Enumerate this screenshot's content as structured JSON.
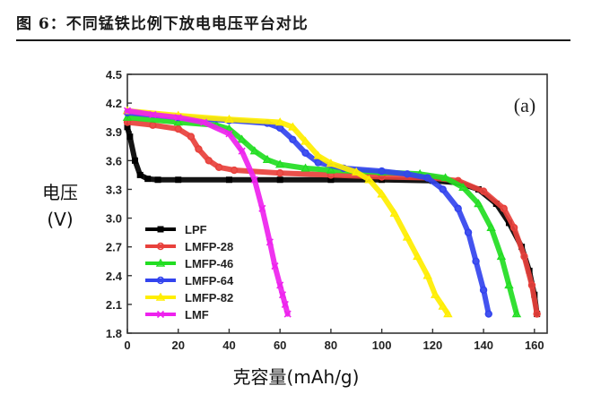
{
  "figure_title": "图 6：不同锰铁比例下放电电压平台对比",
  "chart_data": {
    "type": "line",
    "panel_label": "(a)",
    "ylabel_line1": "电压",
    "ylabel_line2": "(V)",
    "xlabel": "克容量(mAh/g)",
    "xlim": [
      0,
      165
    ],
    "ylim": [
      1.8,
      4.5
    ],
    "xticks": [
      "0",
      "20",
      "40",
      "60",
      "80",
      "100",
      "120",
      "140",
      "160"
    ],
    "yticks": [
      "1.8",
      "2.1",
      "2.4",
      "2.7",
      "3.0",
      "3.3",
      "3.6",
      "3.9",
      "4.2",
      "4.5"
    ],
    "grid": false,
    "legend_position": "bottom-left",
    "series": [
      {
        "name": "LPF",
        "color": "#000000",
        "marker": "square",
        "x": [
          0,
          1,
          3,
          5,
          8,
          12,
          20,
          40,
          60,
          80,
          100,
          120,
          130,
          138,
          145,
          150,
          155,
          158,
          160,
          161
        ],
        "y": [
          3.95,
          3.85,
          3.6,
          3.45,
          3.41,
          3.4,
          3.4,
          3.4,
          3.4,
          3.4,
          3.4,
          3.39,
          3.37,
          3.3,
          3.15,
          2.95,
          2.7,
          2.45,
          2.2,
          2.0
        ]
      },
      {
        "name": "LMFP-28",
        "color": "#e8413c",
        "marker": "circle",
        "x": [
          0,
          10,
          20,
          25,
          28,
          32,
          36,
          42,
          60,
          80,
          100,
          120,
          130,
          140,
          148,
          152,
          156,
          159,
          161
        ],
        "y": [
          4.0,
          3.97,
          3.93,
          3.85,
          3.72,
          3.6,
          3.53,
          3.5,
          3.47,
          3.45,
          3.43,
          3.42,
          3.39,
          3.28,
          3.1,
          2.9,
          2.6,
          2.3,
          2.0
        ]
      },
      {
        "name": "LMFP-46",
        "color": "#22dd22",
        "marker": "triangle",
        "x": [
          0,
          20,
          35,
          40,
          45,
          50,
          55,
          60,
          70,
          80,
          100,
          115,
          125,
          132,
          138,
          143,
          147,
          150,
          153
        ],
        "y": [
          4.05,
          4.0,
          3.97,
          3.93,
          3.82,
          3.7,
          3.61,
          3.56,
          3.52,
          3.5,
          3.48,
          3.46,
          3.42,
          3.32,
          3.15,
          2.9,
          2.6,
          2.3,
          2.0
        ]
      },
      {
        "name": "LMFP-64",
        "color": "#3344ee",
        "marker": "circle",
        "x": [
          0,
          20,
          40,
          55,
          60,
          65,
          70,
          75,
          85,
          100,
          110,
          118,
          124,
          130,
          134,
          137,
          140,
          142
        ],
        "y": [
          4.1,
          4.05,
          4.02,
          3.99,
          3.94,
          3.82,
          3.68,
          3.58,
          3.52,
          3.49,
          3.46,
          3.42,
          3.3,
          3.1,
          2.85,
          2.55,
          2.25,
          2.0
        ]
      },
      {
        "name": "LMFP-82",
        "color": "#ffee00",
        "marker": "triangle",
        "x": [
          0,
          20,
          40,
          60,
          65,
          70,
          75,
          80,
          90,
          95,
          100,
          105,
          110,
          114,
          118,
          121,
          124,
          126
        ],
        "y": [
          4.12,
          4.07,
          4.03,
          4.0,
          3.95,
          3.8,
          3.65,
          3.57,
          3.48,
          3.4,
          3.25,
          3.05,
          2.8,
          2.6,
          2.4,
          2.2,
          2.08,
          2.0
        ]
      },
      {
        "name": "LMF",
        "color": "#ee22ee",
        "marker": "x",
        "x": [
          0,
          10,
          20,
          30,
          40,
          45,
          50,
          53,
          56,
          58,
          60,
          61,
          62,
          63
        ],
        "y": [
          4.12,
          4.08,
          4.05,
          4.0,
          3.88,
          3.7,
          3.4,
          3.1,
          2.75,
          2.5,
          2.3,
          2.2,
          2.1,
          2.0
        ]
      }
    ]
  }
}
